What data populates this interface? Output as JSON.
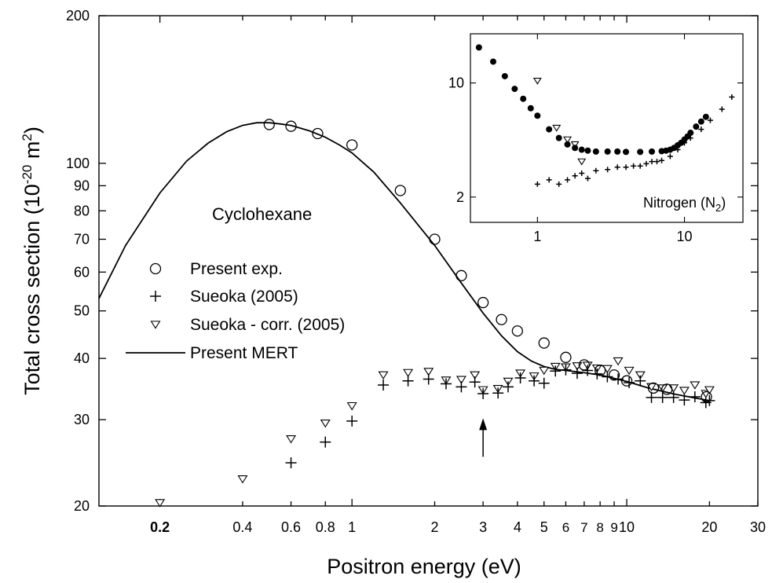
{
  "chart_data": {
    "type": "scatter",
    "title": "",
    "xlabel": "Positron energy (eV)",
    "ylabel": "Total cross section (10^-20 m^2)",
    "ylabel_parts": {
      "main": "Total cross section (10",
      "exp1": "-20",
      "mid": " m",
      "exp2": "2",
      "end": ")"
    },
    "x_scale": "log",
    "y_scale": "log",
    "xlim": [
      0.12,
      30
    ],
    "ylim": [
      20,
      200
    ],
    "x_ticks": [
      {
        "v": 0.2,
        "label": "0.2"
      },
      {
        "v": 0.4,
        "label": "0.4"
      },
      {
        "v": 0.6,
        "label": "0.6"
      },
      {
        "v": 0.8,
        "label": "0.8"
      },
      {
        "v": 1,
        "label": "1"
      },
      {
        "v": 2,
        "label": "2"
      },
      {
        "v": 3,
        "label": "3"
      },
      {
        "v": 4,
        "label": "4"
      },
      {
        "v": 5,
        "label": "5"
      },
      {
        "v": 6,
        "label": "6"
      },
      {
        "v": 7,
        "label": "7"
      },
      {
        "v": 8,
        "label": "8"
      },
      {
        "v": 9,
        "label": "9"
      },
      {
        "v": 10,
        "label": "10"
      },
      {
        "v": 20,
        "label": "20"
      },
      {
        "v": 30,
        "label": "30"
      }
    ],
    "y_ticks": [
      {
        "v": 20,
        "label": "20"
      },
      {
        "v": 30,
        "label": "30"
      },
      {
        "v": 40,
        "label": "40"
      },
      {
        "v": 50,
        "label": "50"
      },
      {
        "v": 60,
        "label": "60"
      },
      {
        "v": 70,
        "label": "70"
      },
      {
        "v": 80,
        "label": "80"
      },
      {
        "v": 90,
        "label": "90"
      },
      {
        "v": 100,
        "label": "100"
      },
      {
        "v": 200,
        "label": "200"
      }
    ],
    "annotation": "Cyclohexane",
    "arrow_at_x": 3,
    "arrow_y_range": [
      25.2,
      30.2
    ],
    "legend": {
      "placement": "left-middle",
      "entries": [
        {
          "name": "Present exp.",
          "marker": "circle-open"
        },
        {
          "name": "Sueoka (2005)",
          "marker": "plus"
        },
        {
          "name": "Sueoka - corr. (2005)",
          "marker": "triangle-down-open"
        },
        {
          "name": "Present MERT",
          "marker": "line"
        }
      ]
    },
    "series": [
      {
        "name": "Present exp.",
        "marker": "circle-open",
        "x": [
          0.5,
          0.6,
          0.75,
          1.0,
          1.5,
          2.0,
          2.5,
          3.0,
          3.5,
          4.0,
          5.0,
          6.0,
          7.0,
          8.0,
          9.0,
          10.0,
          12.5,
          14.0,
          19.5
        ],
        "y": [
          120,
          119,
          115,
          109,
          88,
          70,
          59,
          52,
          48,
          45.5,
          43,
          40.2,
          38.8,
          37.8,
          37,
          36,
          34.8,
          34.6,
          33.4
        ]
      },
      {
        "name": "Sueoka (2005)",
        "marker": "plus",
        "x": [
          0.6,
          0.8,
          1.0,
          1.3,
          1.6,
          1.9,
          2.2,
          2.5,
          2.8,
          3.0,
          3.4,
          3.7,
          4.1,
          4.6,
          5.0,
          5.5,
          6.0,
          6.6,
          7.2,
          7.8,
          8.5,
          9.3,
          10.2,
          11.2,
          12.3,
          13.5,
          14.8,
          16.2,
          17.7,
          19.4,
          20.0
        ],
        "y": [
          24.5,
          27,
          29.8,
          35.3,
          36,
          36.3,
          35.5,
          35,
          35.8,
          33.9,
          34,
          35,
          36.5,
          36,
          35.6,
          37.7,
          37.9,
          37.3,
          37.8,
          37.2,
          36.7,
          36.3,
          35.7,
          36,
          33.3,
          33.3,
          33.3,
          32.9,
          33.4,
          32.5,
          32.8
        ]
      },
      {
        "name": "Sueoka - corr. (2005)",
        "marker": "triangle-down-open",
        "x": [
          0.2,
          0.4,
          0.6,
          0.8,
          1.0,
          1.3,
          1.6,
          1.9,
          2.2,
          2.5,
          2.8,
          3.0,
          3.4,
          3.7,
          4.1,
          4.6,
          5.0,
          5.5,
          6.0,
          6.6,
          7.2,
          7.8,
          8.5,
          9.3,
          10.2,
          11.2,
          12.3,
          13.5,
          14.8,
          16.2,
          17.7,
          19.4,
          20.0
        ],
        "y": [
          20.3,
          22.7,
          27.4,
          29.5,
          32,
          37,
          37.4,
          37.6,
          36.1,
          36.2,
          37,
          34.5,
          34.7,
          35.9,
          37.3,
          36.8,
          37.8,
          38.5,
          38.4,
          38.6,
          38.7,
          38.2,
          38.1,
          39.5,
          37.8,
          37,
          35,
          34.8,
          34.8,
          34.4,
          35.3,
          33.9,
          34.5
        ]
      },
      {
        "name": "Present MERT",
        "marker": "line",
        "x": [
          0.12,
          0.15,
          0.2,
          0.25,
          0.3,
          0.35,
          0.4,
          0.45,
          0.5,
          0.55,
          0.6,
          0.7,
          0.8,
          0.9,
          1.0,
          1.2,
          1.5,
          2.0,
          2.5,
          3.0,
          3.5,
          4.0,
          4.5,
          5.0,
          5.5,
          6.0,
          7.0,
          8.0,
          10.0,
          12.0,
          15.0,
          20.0
        ],
        "y": [
          53,
          68,
          87,
          101,
          110,
          116,
          119.5,
          121,
          121,
          120.3,
          119.5,
          116.5,
          113,
          109,
          105,
          96,
          83,
          68,
          57,
          49.5,
          44.5,
          41.3,
          39.5,
          38.5,
          38.0,
          37.8,
          37.4,
          37.0,
          35.9,
          34.8,
          33.8,
          32.8
        ]
      }
    ],
    "inset": {
      "annotation_main": "Nitrogen (N",
      "annotation_sub": "2",
      "annotation_end": ")",
      "x_scale": "log",
      "y_scale": "log",
      "xlim": [
        0.35,
        25
      ],
      "ylim": [
        1.4,
        20
      ],
      "x_ticks": [
        {
          "v": 1,
          "label": "1"
        },
        {
          "v": 10,
          "label": "10"
        }
      ],
      "y_ticks": [
        {
          "v": 2,
          "label": "2"
        },
        {
          "v": 10,
          "label": "10"
        }
      ],
      "series": [
        {
          "name": "filled circles",
          "marker": "circle-filled",
          "x": [
            0.4,
            0.5,
            0.6,
            0.7,
            0.8,
            0.9,
            1.0,
            1.2,
            1.4,
            1.6,
            1.8,
            2.0,
            2.2,
            2.5,
            3.0,
            3.5,
            4.0,
            5.0,
            6.0,
            7.0,
            7.5,
            8.0,
            8.5,
            9.0,
            9.5,
            10.0,
            10.5,
            11.0,
            12.0,
            13.0,
            14.0
          ],
          "y": [
            16.5,
            13.5,
            11.0,
            9.2,
            8.0,
            7.0,
            6.3,
            5.2,
            4.6,
            4.2,
            4.0,
            3.9,
            3.85,
            3.8,
            3.8,
            3.8,
            3.78,
            3.78,
            3.8,
            3.82,
            3.85,
            3.9,
            4.0,
            4.15,
            4.3,
            4.5,
            4.7,
            4.95,
            5.4,
            5.8,
            6.2
          ]
        },
        {
          "name": "pluses",
          "marker": "plus",
          "x": [
            1.0,
            1.2,
            1.4,
            1.6,
            1.8,
            2.0,
            2.2,
            2.5,
            3.0,
            3.5,
            4.0,
            4.5,
            5.0,
            5.5,
            6.0,
            6.5,
            7.0,
            8.0,
            9.0,
            10.0,
            11.0,
            13.0,
            15.0,
            18.0,
            21.0
          ],
          "y": [
            2.4,
            2.55,
            2.4,
            2.55,
            2.7,
            2.8,
            2.6,
            2.9,
            2.95,
            3.05,
            3.05,
            3.1,
            3.1,
            3.2,
            3.3,
            3.3,
            3.35,
            3.55,
            3.9,
            4.3,
            4.6,
            5.2,
            5.9,
            6.9,
            8.2
          ]
        },
        {
          "name": "open triangles",
          "marker": "triangle-down-open",
          "x": [
            1.0,
            1.35,
            1.6,
            1.8,
            2.0
          ],
          "y": [
            10.3,
            5.3,
            4.5,
            4.2,
            3.3
          ]
        }
      ]
    }
  }
}
